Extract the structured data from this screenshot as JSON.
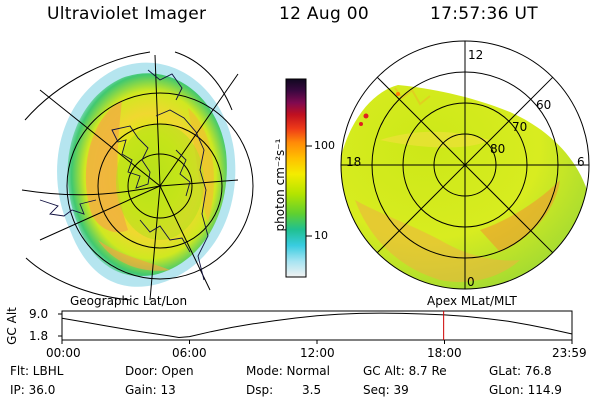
{
  "header": {
    "title": "Ultraviolet Imager",
    "date": "12 Aug 00",
    "time": "17:57:36 UT"
  },
  "left_panel": {
    "caption": "Geographic Lat/Lon"
  },
  "right_panel": {
    "caption": "Apex MLat/MLT",
    "mlt_labels": {
      "top": "12",
      "left": "18",
      "right": "6",
      "bottom": "0"
    },
    "lat_labels": [
      "60",
      "70",
      "80"
    ]
  },
  "colorbar": {
    "unit_label": "photon cm⁻²s⁻¹",
    "tick_labels": [
      "100",
      "10"
    ],
    "colors": [
      "#100820",
      "#2a0838",
      "#5a0a50",
      "#8a0a50",
      "#b00a30",
      "#d81818",
      "#f04020",
      "#ff7a10",
      "#ffa000",
      "#ffc800",
      "#ffe800",
      "#e8f000",
      "#b8e800",
      "#80d800",
      "#40c840",
      "#20c0a0",
      "#30c8e0",
      "#80e0f0",
      "#c0ecf8",
      "#f0f0f0"
    ]
  },
  "altitude_plot": {
    "y_axis_label": "GC Alt",
    "y_ticks": [
      "9.0",
      "1.8"
    ],
    "x_ticks": [
      "00:00",
      "06:00",
      "12:00",
      "18:00",
      "23:59"
    ],
    "orbit_curve": [
      {
        "t": 0.0,
        "alt": 7.6
      },
      {
        "t": 1.0,
        "alt": 6.4
      },
      {
        "t": 2.0,
        "alt": 5.2
      },
      {
        "t": 3.0,
        "alt": 4.0
      },
      {
        "t": 4.0,
        "alt": 2.9
      },
      {
        "t": 5.0,
        "alt": 1.9
      },
      {
        "t": 5.5,
        "alt": 1.3
      },
      {
        "t": 6.0,
        "alt": 1.6
      },
      {
        "t": 7.0,
        "alt": 3.2
      },
      {
        "t": 8.0,
        "alt": 4.6
      },
      {
        "t": 9.0,
        "alt": 5.8
      },
      {
        "t": 10.0,
        "alt": 6.8
      },
      {
        "t": 11.0,
        "alt": 7.7
      },
      {
        "t": 12.0,
        "alt": 8.4
      },
      {
        "t": 13.0,
        "alt": 8.9
      },
      {
        "t": 14.0,
        "alt": 9.2
      },
      {
        "t": 15.0,
        "alt": 9.3
      },
      {
        "t": 16.0,
        "alt": 9.2
      },
      {
        "t": 17.0,
        "alt": 9.0
      },
      {
        "t": 18.0,
        "alt": 8.7
      },
      {
        "t": 19.0,
        "alt": 8.2
      },
      {
        "t": 20.0,
        "alt": 7.5
      },
      {
        "t": 21.0,
        "alt": 6.6
      },
      {
        "t": 22.0,
        "alt": 5.4
      },
      {
        "t": 23.0,
        "alt": 4.0
      },
      {
        "t": 23.98,
        "alt": 2.5
      }
    ],
    "marker_time": 17.96,
    "marker_color": "#cc0000"
  },
  "info": {
    "flt": "Flt: LBHL",
    "door": "Door: Open",
    "mode": "Mode: Normal",
    "gc_alt": "GC Alt: 8.7 Re",
    "glat": "GLat: 76.8",
    "ip": "IP: 36.0",
    "gain": "Gain: 13",
    "dsp": "Dsp:",
    "dsp_value": "3.5",
    "seq": "Seq: 39",
    "glon": "GLon: 114.9"
  }
}
